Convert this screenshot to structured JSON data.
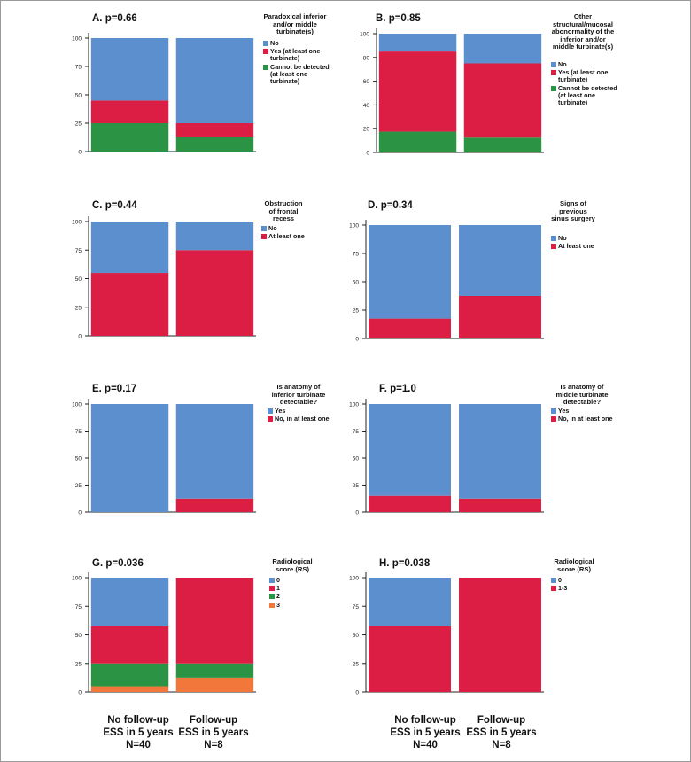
{
  "colors": {
    "blue": "#5b8fcd",
    "red": "#dc1e44",
    "green": "#2b9344",
    "orange": "#f1783a"
  },
  "x_captions": {
    "group1": [
      "No follow-up",
      "ESS in 5 years",
      "N=40"
    ],
    "group2": [
      "Follow-up",
      "ESS in 5 years",
      "N=8"
    ]
  },
  "chart_data": [
    {
      "id": "A",
      "type": "bar",
      "stacked": true,
      "title": "A.  p=0.66",
      "legend_title": "Paradoxical inferior and/or middle turbinate(s)",
      "yticks": [
        0,
        25,
        50,
        75,
        100
      ],
      "ylim": [
        0,
        100
      ],
      "categories": [
        "No follow-up",
        "Follow-up"
      ],
      "series": [
        {
          "name": "Cannot be detected (at least one turbinate)",
          "color": "green",
          "values": [
            25,
            12.5
          ]
        },
        {
          "name": "Yes (at least one turbinate)",
          "color": "red",
          "values": [
            20,
            12.5
          ]
        },
        {
          "name": "No",
          "color": "blue",
          "values": [
            55,
            75
          ]
        }
      ]
    },
    {
      "id": "B",
      "type": "bar",
      "stacked": true,
      "title": "B.  p=0.85",
      "legend_title": "Other structural/mucosal abonormality of the inferior and/or middle turbinate(s)",
      "yticks": [
        0,
        20,
        40,
        60,
        80,
        100
      ],
      "ylim": [
        0,
        100
      ],
      "categories": [
        "No follow-up",
        "Follow-up"
      ],
      "series": [
        {
          "name": "Cannot be detected (at least one turbinate)",
          "color": "green",
          "values": [
            17.5,
            12.5
          ]
        },
        {
          "name": "Yes (at least one turbinate)",
          "color": "red",
          "values": [
            67.5,
            62.5
          ]
        },
        {
          "name": "No",
          "color": "blue",
          "values": [
            15,
            25
          ]
        }
      ]
    },
    {
      "id": "C",
      "type": "bar",
      "stacked": true,
      "title": "C.  p=0.44",
      "legend_title": "Obstruction of frontal recess",
      "yticks": [
        0,
        25,
        50,
        75,
        100
      ],
      "ylim": [
        0,
        100
      ],
      "categories": [
        "No follow-up",
        "Follow-up"
      ],
      "series": [
        {
          "name": "At least one",
          "color": "red",
          "values": [
            55,
            75
          ]
        },
        {
          "name": "No",
          "color": "blue",
          "values": [
            45,
            25
          ]
        }
      ]
    },
    {
      "id": "D",
      "type": "bar",
      "stacked": true,
      "title": "D.  p=0.34",
      "legend_title": "Signs of previous sinus surgery",
      "yticks": [
        0,
        25,
        50,
        75,
        100
      ],
      "ylim": [
        0,
        100
      ],
      "categories": [
        "No follow-up",
        "Follow-up"
      ],
      "series": [
        {
          "name": "At least one",
          "color": "red",
          "values": [
            17.5,
            37.5
          ]
        },
        {
          "name": "No",
          "color": "blue",
          "values": [
            82.5,
            62.5
          ]
        }
      ]
    },
    {
      "id": "E",
      "type": "bar",
      "stacked": true,
      "title": "E.  p=0.17",
      "legend_title": "Is anatomy of inferior turbinate detectable?",
      "yticks": [
        0,
        25,
        50,
        75,
        100
      ],
      "ylim": [
        0,
        100
      ],
      "categories": [
        "No follow-up",
        "Follow-up"
      ],
      "series": [
        {
          "name": "No, in at least one",
          "color": "red",
          "values": [
            0,
            12.5
          ]
        },
        {
          "name": "Yes",
          "color": "blue",
          "values": [
            100,
            87.5
          ]
        }
      ]
    },
    {
      "id": "F",
      "type": "bar",
      "stacked": true,
      "title": "F.  p=1.0",
      "legend_title": "Is anatomy of middle turbinate detectable?",
      "yticks": [
        0,
        25,
        50,
        75,
        100
      ],
      "ylim": [
        0,
        100
      ],
      "categories": [
        "No follow-up",
        "Follow-up"
      ],
      "series": [
        {
          "name": "No, in at least one",
          "color": "red",
          "values": [
            15,
            12.5
          ]
        },
        {
          "name": "Yes",
          "color": "blue",
          "values": [
            85,
            87.5
          ]
        }
      ]
    },
    {
      "id": "G",
      "type": "bar",
      "stacked": true,
      "title": "G.  p=0.036",
      "legend_title": "Radiological score (RS)",
      "yticks": [
        0,
        25,
        50,
        75,
        100
      ],
      "ylim": [
        0,
        100
      ],
      "categories": [
        "No follow-up",
        "Follow-up"
      ],
      "series": [
        {
          "name": "3",
          "color": "orange",
          "values": [
            5,
            12.5
          ]
        },
        {
          "name": "2",
          "color": "green",
          "values": [
            20,
            12.5
          ]
        },
        {
          "name": "1",
          "color": "red",
          "values": [
            32.5,
            75
          ]
        },
        {
          "name": "0",
          "color": "blue",
          "values": [
            42.5,
            0
          ]
        }
      ]
    },
    {
      "id": "H",
      "type": "bar",
      "stacked": true,
      "title": "H.  p=0.038",
      "legend_title": "Radiological score (RS)",
      "yticks": [
        0,
        25,
        50,
        75,
        100
      ],
      "ylim": [
        0,
        100
      ],
      "categories": [
        "No follow-up",
        "Follow-up"
      ],
      "series": [
        {
          "name": "1-3",
          "color": "red",
          "values": [
            57.5,
            100
          ]
        },
        {
          "name": "0",
          "color": "blue",
          "values": [
            42.5,
            0
          ]
        }
      ]
    }
  ]
}
